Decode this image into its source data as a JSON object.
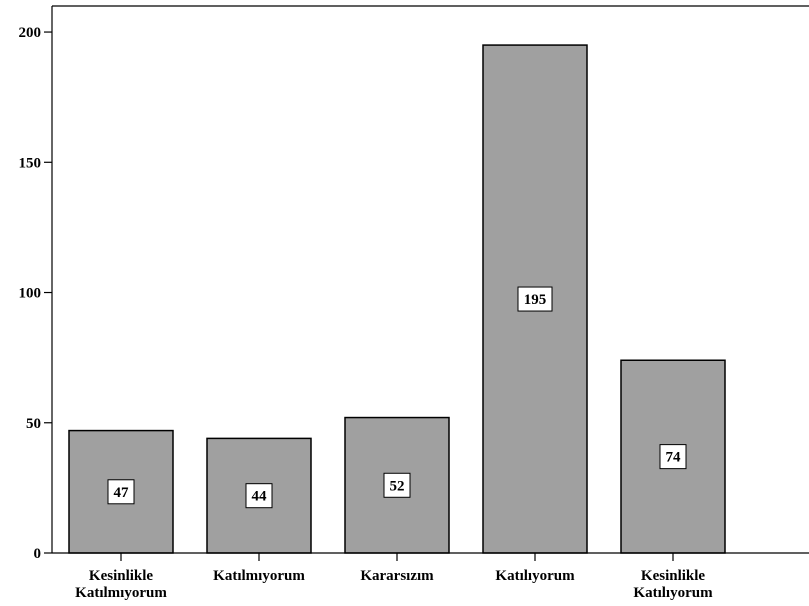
{
  "chart_data": {
    "type": "bar",
    "categories": [
      [
        "Kesinlikle",
        "Katılmıyorum"
      ],
      [
        "Katılmıyorum"
      ],
      [
        "Kararsızım"
      ],
      [
        "Katılıyorum"
      ],
      [
        "Kesinlikle",
        "Katılıyorum"
      ]
    ],
    "values": [
      47,
      44,
      52,
      195,
      74
    ],
    "data_labels": [
      "47",
      "44",
      "52",
      "195",
      "74"
    ],
    "title": "",
    "xlabel": "",
    "ylabel": "",
    "ylim": [
      0,
      210
    ],
    "yticks": [
      0,
      50,
      100,
      150,
      200
    ],
    "ytick_labels": [
      "0",
      "50",
      "100",
      "150",
      "200"
    ],
    "grid": false,
    "legend": "none",
    "bar_color": "#a0a0a0",
    "bar_edge_color": "#000000",
    "label_box_color": "#ffffff",
    "background_color": "#ffffff"
  }
}
